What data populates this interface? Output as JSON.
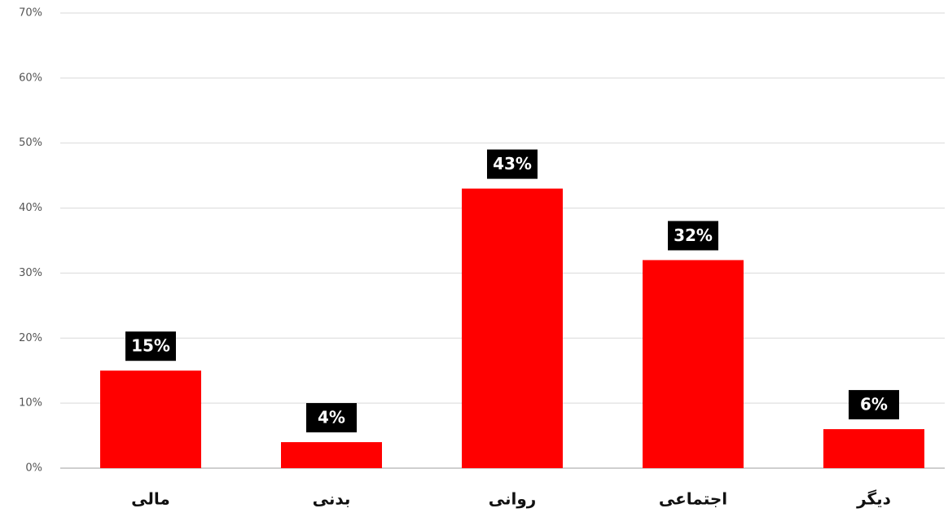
{
  "chart_data": {
    "type": "bar",
    "categories": [
      "مالی",
      "بدنی",
      "روانی",
      "اجتماعی",
      "دیگر"
    ],
    "values": [
      15,
      4,
      43,
      32,
      6
    ],
    "value_labels": [
      "15%",
      "4%",
      "43%",
      "32%",
      "6%"
    ],
    "color": "#ff0000",
    "ylim": [
      0,
      70
    ],
    "yticks": [
      {
        "value": 0,
        "label": "0%"
      },
      {
        "value": 10,
        "label": "10%"
      },
      {
        "value": 20,
        "label": "20%"
      },
      {
        "value": 30,
        "label": "30%"
      },
      {
        "value": 40,
        "label": "40%"
      },
      {
        "value": 50,
        "label": "50%"
      },
      {
        "value": 60,
        "label": "60%"
      },
      {
        "value": 70,
        "label": "70%"
      }
    ],
    "grid": true
  }
}
